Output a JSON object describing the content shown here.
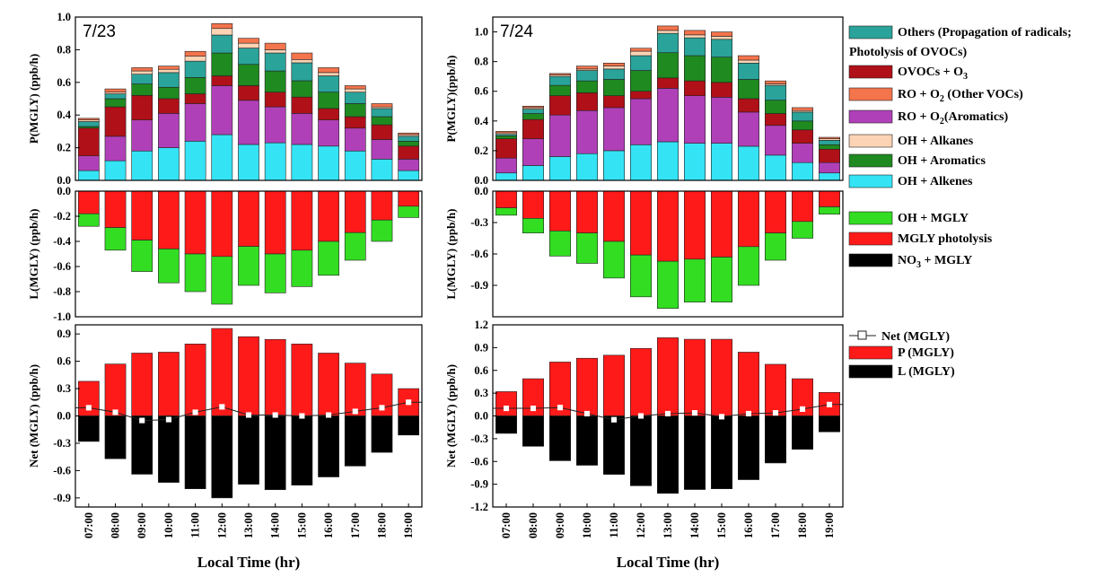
{
  "chart_data": {
    "type": "bar",
    "stacked": true,
    "categories": [
      "07:00",
      "08:00",
      "09:00",
      "10:00",
      "11:00",
      "12:00",
      "13:00",
      "14:00",
      "15:00",
      "16:00",
      "17:00",
      "18:00",
      "19:00"
    ],
    "xlabel": "Local Time (hr)",
    "production_legend": [
      {
        "key": "others",
        "label": "Others (Propagation of radicals;",
        "label2": "Photolysis of OVOCs)",
        "color": "#2aa39a"
      },
      {
        "key": "ovocs_o3",
        "label": "OVOCs + O",
        "sub": "3",
        "after": "",
        "color": "#b01018"
      },
      {
        "key": "ro2_other",
        "label": "RO + O",
        "sub": "2",
        "after": " (Other VOCs)",
        "color": "#f4744c"
      },
      {
        "key": "ro2_arom",
        "label": "RO + O",
        "sub": "2",
        "after": "(Aromatics)",
        "color": "#b040b8"
      },
      {
        "key": "oh_alkanes",
        "label": "OH + Alkanes",
        "color": "#fcd3b4"
      },
      {
        "key": "oh_aromatics",
        "label": "OH + Aromatics",
        "color": "#1f8a1f"
      },
      {
        "key": "oh_alkenes",
        "label": "OH + Alkenes",
        "color": "#34e3f4"
      }
    ],
    "loss_legend": [
      {
        "key": "oh_mgly",
        "label": "OH + MGLY",
        "color": "#33dd22"
      },
      {
        "key": "mgly_photolysis",
        "label": "MGLY photolysis",
        "color": "#ff1a1a"
      },
      {
        "key": "no3_mgly",
        "label": "NO",
        "sub": "3",
        "after": " + MGLY",
        "color": "#000000"
      }
    ],
    "net_legend": [
      {
        "key": "net",
        "label": "Net (MGLY)",
        "color": "#000000"
      },
      {
        "key": "p",
        "label": "P (MGLY)",
        "color": "#ff1a1a"
      },
      {
        "key": "l",
        "label": "L (MGLY)",
        "color": "#000000"
      }
    ],
    "panels": [
      {
        "date": "7/23",
        "production": {
          "ylabel": "P(MGLY) (ppb/h)",
          "ylim": [
            0,
            1.0
          ],
          "yticks": [
            "0.0",
            "0.2",
            "0.4",
            "0.6",
            "0.8",
            "1.0"
          ],
          "ytick_values": [
            0,
            0.2,
            0.4,
            0.6,
            0.8,
            1.0
          ],
          "series": {
            "oh_alkenes": [
              0.06,
              0.12,
              0.18,
              0.2,
              0.24,
              0.28,
              0.22,
              0.23,
              0.22,
              0.21,
              0.18,
              0.13,
              0.06
            ],
            "oh_aromatics": [
              0.0,
              0.0,
              0.0,
              0.0,
              0.0,
              0.0,
              0.0,
              0.0,
              0.0,
              0.0,
              0.0,
              0.0,
              0.0
            ],
            "ro2_arom": [
              0.09,
              0.15,
              0.19,
              0.21,
              0.23,
              0.3,
              0.27,
              0.22,
              0.19,
              0.16,
              0.14,
              0.12,
              0.07
            ],
            "ovocs_o3": [
              0.17,
              0.18,
              0.15,
              0.09,
              0.06,
              0.06,
              0.09,
              0.09,
              0.1,
              0.07,
              0.07,
              0.09,
              0.08
            ],
            "oh_aromatic2": [
              0.01,
              0.05,
              0.07,
              0.07,
              0.1,
              0.14,
              0.13,
              0.13,
              0.1,
              0.1,
              0.08,
              0.05,
              0.03
            ],
            "others": [
              0.03,
              0.03,
              0.06,
              0.09,
              0.1,
              0.11,
              0.1,
              0.11,
              0.11,
              0.1,
              0.07,
              0.05,
              0.03
            ],
            "oh_alkanes": [
              0.01,
              0.01,
              0.02,
              0.02,
              0.03,
              0.04,
              0.03,
              0.02,
              0.02,
              0.02,
              0.02,
              0.01,
              0.01
            ],
            "ro2_other": [
              0.01,
              0.02,
              0.02,
              0.02,
              0.03,
              0.03,
              0.03,
              0.04,
              0.04,
              0.03,
              0.02,
              0.02,
              0.01
            ]
          }
        },
        "loss": {
          "ylabel": "L(MGLY) (ppb/h)",
          "ylim": [
            -1.0,
            0.0
          ],
          "yticks": [
            "0.0",
            "-0.2",
            "-0.4",
            "-0.6",
            "-0.8",
            "-1.0"
          ],
          "ytick_values": [
            0,
            -0.2,
            -0.4,
            -0.6,
            -0.8,
            -1.0
          ],
          "mgly_photolysis": [
            -0.18,
            -0.29,
            -0.39,
            -0.46,
            -0.5,
            -0.52,
            -0.44,
            -0.5,
            -0.47,
            -0.4,
            -0.33,
            -0.23,
            -0.12
          ],
          "oh_mgly": [
            -0.1,
            -0.18,
            -0.25,
            -0.27,
            -0.3,
            -0.38,
            -0.31,
            -0.31,
            -0.29,
            -0.27,
            -0.22,
            -0.17,
            -0.09
          ],
          "no3_mgly": [
            0,
            0,
            0,
            0,
            0,
            0,
            0,
            0,
            0,
            0,
            0,
            0,
            0
          ]
        },
        "net": {
          "ylabel": "Net (MGLY) (ppb/h)",
          "ylim": [
            -1.0,
            1.0
          ],
          "yticks": [
            "0.9",
            "0.6",
            "0.3",
            "0.0",
            "-0.3",
            "-0.6",
            "-0.9"
          ],
          "ytick_values": [
            0.9,
            0.6,
            0.3,
            0.0,
            -0.3,
            -0.6,
            -0.9
          ],
          "p": [
            0.38,
            0.57,
            0.69,
            0.7,
            0.79,
            0.96,
            0.87,
            0.84,
            0.79,
            0.69,
            0.58,
            0.46,
            0.3
          ],
          "l": [
            -0.28,
            -0.47,
            -0.64,
            -0.73,
            -0.8,
            -0.9,
            -0.75,
            -0.81,
            -0.76,
            -0.67,
            -0.55,
            -0.4,
            -0.21
          ],
          "net": [
            0.09,
            0.04,
            -0.05,
            -0.04,
            0.04,
            0.1,
            0.01,
            0.01,
            0.0,
            0.01,
            0.05,
            0.09,
            0.15
          ]
        }
      },
      {
        "date": "7/24",
        "production": {
          "ylabel": "P(MGLY)(ppb/h)",
          "ylim": [
            0,
            1.1
          ],
          "yticks": [
            "0.0",
            "0.2",
            "0.4",
            "0.6",
            "0.8",
            "1.0"
          ],
          "ytick_values": [
            0,
            0.2,
            0.4,
            0.6,
            0.8,
            1.0
          ],
          "series": {
            "oh_alkenes": [
              0.05,
              0.1,
              0.16,
              0.18,
              0.2,
              0.24,
              0.26,
              0.25,
              0.25,
              0.23,
              0.17,
              0.12,
              0.05
            ],
            "oh_aromatics": [
              0.0,
              0.0,
              0.0,
              0.0,
              0.0,
              0.0,
              0.0,
              0.0,
              0.0,
              0.0,
              0.0,
              0.0,
              0.0
            ],
            "ro2_arom": [
              0.1,
              0.18,
              0.28,
              0.29,
              0.29,
              0.31,
              0.36,
              0.32,
              0.31,
              0.23,
              0.2,
              0.13,
              0.07
            ],
            "ovocs_o3": [
              0.13,
              0.13,
              0.13,
              0.12,
              0.08,
              0.05,
              0.07,
              0.1,
              0.1,
              0.09,
              0.08,
              0.09,
              0.09
            ],
            "oh_aromatic2": [
              0.02,
              0.04,
              0.07,
              0.08,
              0.11,
              0.14,
              0.17,
              0.17,
              0.17,
              0.13,
              0.09,
              0.06,
              0.03
            ],
            "others": [
              0.01,
              0.03,
              0.06,
              0.07,
              0.07,
              0.1,
              0.13,
              0.12,
              0.12,
              0.11,
              0.1,
              0.06,
              0.03
            ],
            "oh_alkanes": [
              0.01,
              0.01,
              0.01,
              0.01,
              0.02,
              0.03,
              0.02,
              0.02,
              0.02,
              0.02,
              0.01,
              0.01,
              0.01
            ],
            "ro2_other": [
              0.01,
              0.01,
              0.01,
              0.02,
              0.02,
              0.02,
              0.03,
              0.03,
              0.03,
              0.03,
              0.02,
              0.02,
              0.01
            ]
          }
        },
        "loss": {
          "ylabel": "L(MGLY) (ppb/h)",
          "ylim": [
            -1.2,
            0.0
          ],
          "yticks": [
            "0.0",
            "-0.3",
            "-0.6",
            "-0.9"
          ],
          "ytick_values": [
            0,
            -0.3,
            -0.6,
            -0.9
          ],
          "mgly_photolysis": [
            -0.16,
            -0.26,
            -0.38,
            -0.4,
            -0.48,
            -0.61,
            -0.67,
            -0.65,
            -0.63,
            -0.53,
            -0.4,
            -0.29,
            -0.15
          ],
          "oh_mgly": [
            -0.07,
            -0.14,
            -0.24,
            -0.29,
            -0.35,
            -0.4,
            -0.45,
            -0.41,
            -0.43,
            -0.37,
            -0.26,
            -0.16,
            -0.07
          ],
          "no3_mgly": [
            0,
            0,
            0,
            0,
            0,
            0,
            0,
            0,
            0,
            0,
            0,
            0,
            0
          ]
        },
        "net": {
          "ylabel": "Net (MGLY) (ppb/h)",
          "ylim": [
            -1.2,
            1.2
          ],
          "yticks": [
            "1.2",
            "0.9",
            "0.6",
            "0.3",
            "0.0",
            "-0.3",
            "-0.6",
            "-0.9",
            "-1.2"
          ],
          "ytick_values": [
            1.2,
            0.9,
            0.6,
            0.3,
            0.0,
            -0.3,
            -0.6,
            -0.9,
            -1.2
          ],
          "p": [
            0.32,
            0.49,
            0.71,
            0.76,
            0.8,
            0.89,
            1.03,
            1.01,
            1.01,
            0.84,
            0.68,
            0.49,
            0.31
          ],
          "l": [
            -0.23,
            -0.4,
            -0.59,
            -0.65,
            -0.77,
            -0.92,
            -1.02,
            -0.97,
            -0.96,
            -0.84,
            -0.62,
            -0.44,
            -0.21
          ],
          "net": [
            0.1,
            0.1,
            0.11,
            0.03,
            -0.05,
            0.0,
            0.03,
            0.04,
            -0.01,
            0.03,
            0.04,
            0.09,
            0.15
          ]
        }
      }
    ]
  }
}
